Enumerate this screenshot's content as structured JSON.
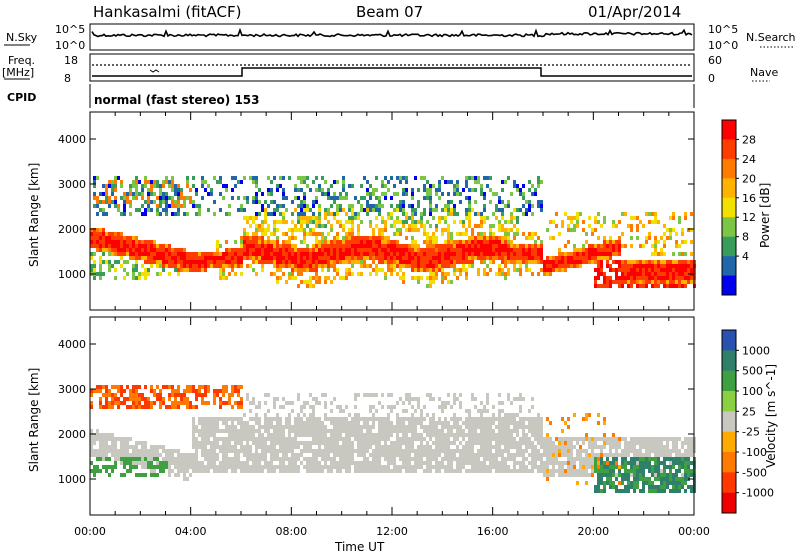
{
  "header": {
    "station": "Hankasalmi (fitACF)",
    "beam": "Beam 07",
    "date": "01/Apr/2014"
  },
  "top_panels": {
    "nsky": {
      "label": "N.Sky",
      "ticks": [
        "10^5",
        "10^0"
      ]
    },
    "nsearch": {
      "label": "N.Search",
      "ticks": [
        "10^5",
        "10^0"
      ]
    },
    "freq": {
      "label": "Freq.",
      "unit": "[MHz]",
      "ticks": [
        "18",
        "8"
      ]
    },
    "nave": {
      "label": "Nave",
      "ticks": [
        "60",
        "0"
      ]
    },
    "cpid": {
      "label": "CPID",
      "value": "normal (fast stereo) 153"
    }
  },
  "chart_data": [
    {
      "type": "heatmap",
      "name": "power",
      "ylabel": "Slant Range [km]",
      "xlabel": "Time UT",
      "x_ticks": [
        "00:00",
        "04:00",
        "08:00",
        "12:00",
        "16:00",
        "20:00",
        "00:00"
      ],
      "y_ticks": [
        1000,
        2000,
        3000,
        4000
      ],
      "ylim": [
        200,
        4600
      ],
      "colorbar": {
        "label": "Power [dB]",
        "ticks": [
          "28",
          "24",
          "20",
          "16",
          "12",
          "8",
          "4"
        ],
        "colors": [
          "#ff0000",
          "#ff3d00",
          "#ff7a00",
          "#ffb300",
          "#f2e000",
          "#7cc646",
          "#3a9c5a",
          "#2166a8",
          "#0000ee"
        ]
      }
    },
    {
      "type": "heatmap",
      "name": "velocity",
      "ylabel": "Slant Range [km]",
      "xlabel": "Time UT",
      "x_ticks": [
        "00:00",
        "04:00",
        "08:00",
        "12:00",
        "16:00",
        "20:00",
        "00:00"
      ],
      "y_ticks": [
        1000,
        2000,
        3000,
        4000
      ],
      "ylim": [
        200,
        4600
      ],
      "colorbar": {
        "label": "Velocity [m s^-1]",
        "ticks": [
          "1000",
          "500",
          "100",
          "25",
          "-25",
          "-100",
          "-500",
          "-1000"
        ],
        "colors": [
          "#2a50b0",
          "#2f7f6a",
          "#3ea040",
          "#8ad040",
          "#c8c8c0",
          "#ffaa00",
          "#ff7a00",
          "#ff3800",
          "#ee0000"
        ]
      }
    }
  ],
  "axis": {
    "xlabel": "Time UT"
  },
  "colors": {
    "ground": "#c8c8c0",
    "beam_red": "#ff2a00"
  }
}
